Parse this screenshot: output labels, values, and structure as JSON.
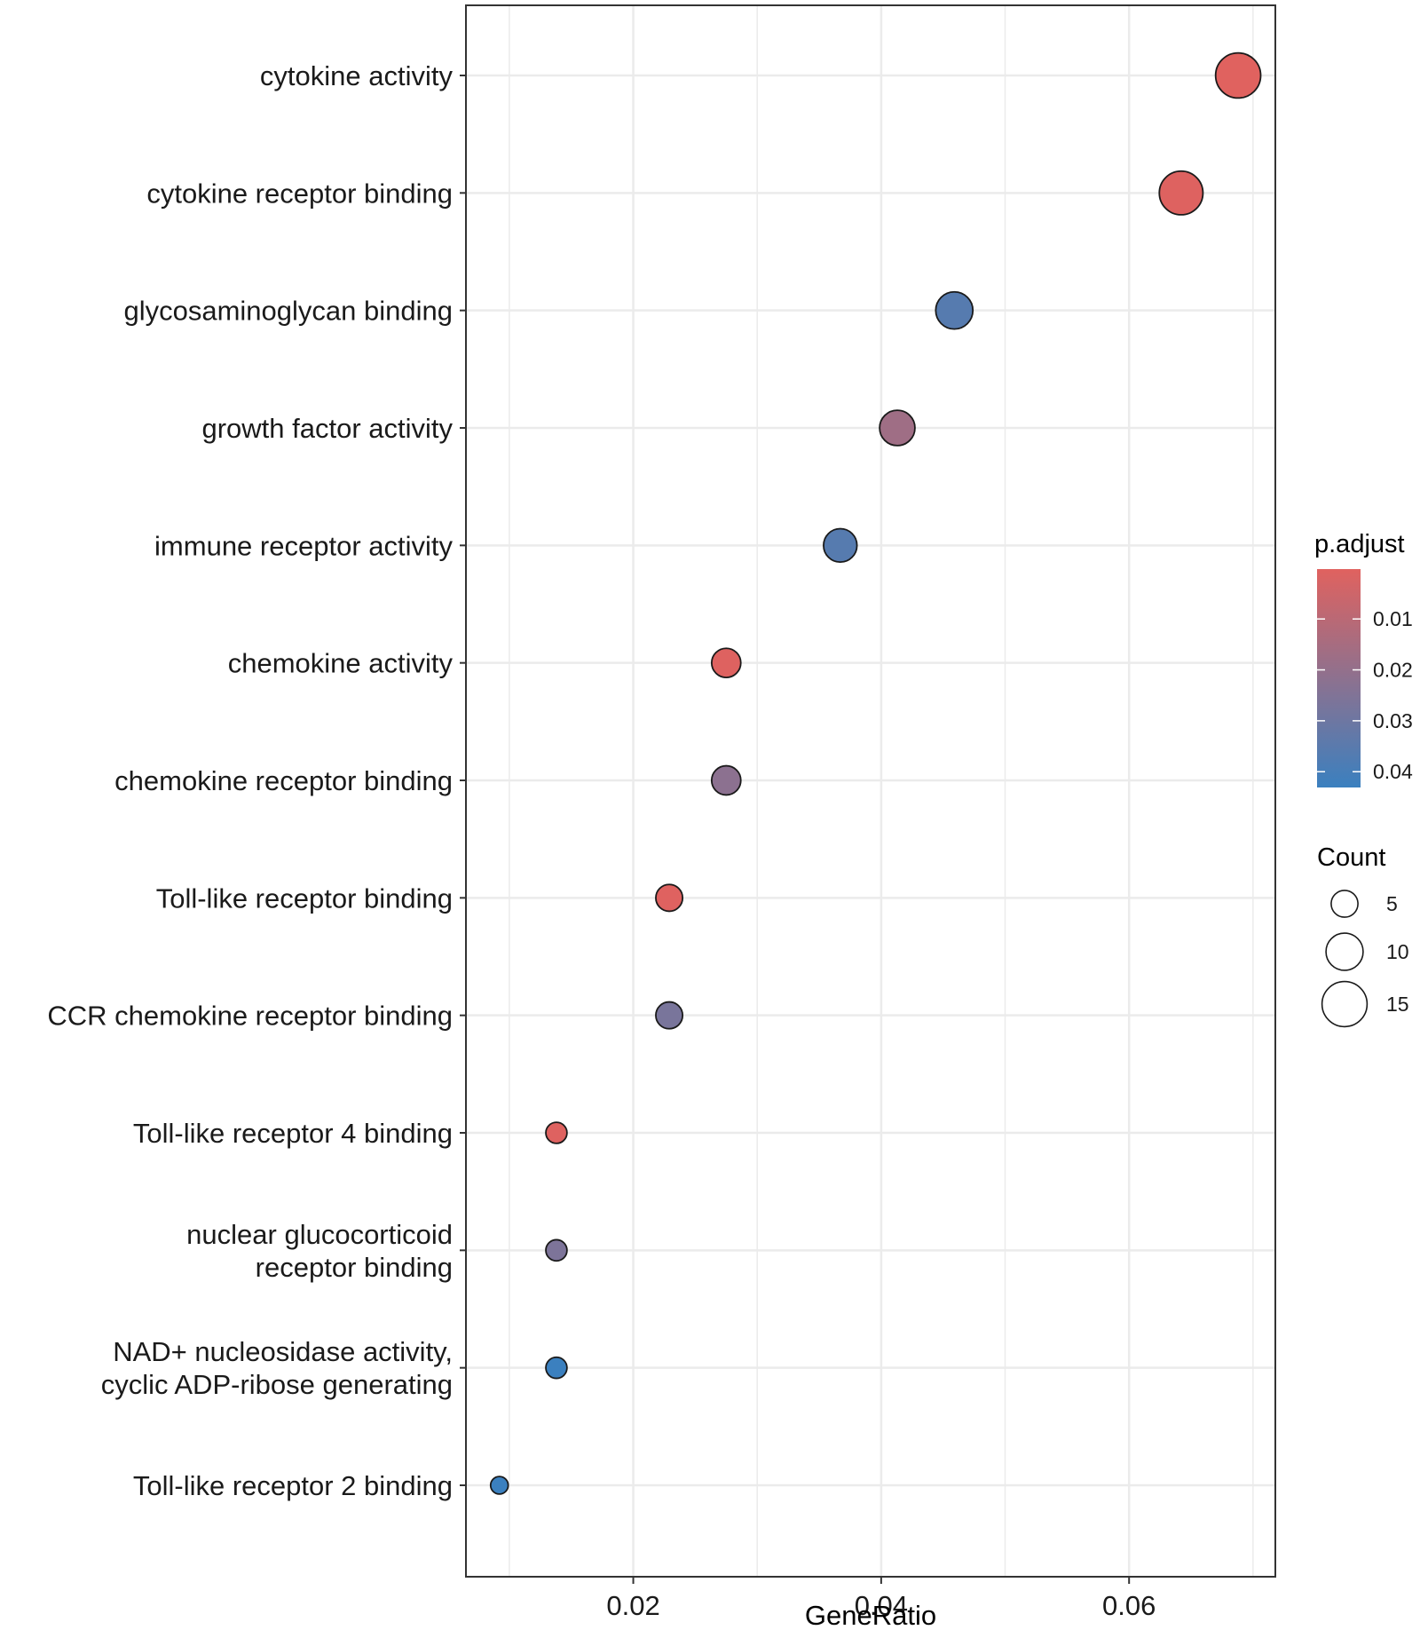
{
  "chart_data": {
    "type": "scatter",
    "subtype": "dotplot",
    "title": "",
    "xlabel": "GeneRatio",
    "ylabel": "",
    "xlim": [
      0.0065,
      0.0718
    ],
    "x_ticks": [
      0.02,
      0.04,
      0.06
    ],
    "x_tick_labels": [
      "0.02",
      "0.04",
      "0.06"
    ],
    "grid": true,
    "categories": [
      [
        "cytokine activity"
      ],
      [
        "cytokine receptor binding"
      ],
      [
        "glycosaminoglycan binding"
      ],
      [
        "growth factor activity"
      ],
      [
        "immune receptor activity"
      ],
      [
        "chemokine activity"
      ],
      [
        "chemokine receptor binding"
      ],
      [
        "Toll-like receptor binding"
      ],
      [
        "CCR chemokine receptor binding"
      ],
      [
        "Toll-like receptor 4 binding"
      ],
      [
        "nuclear glucocorticoid",
        "receptor binding"
      ],
      [
        "NAD+ nucleosidase activity,",
        "cyclic ADP-ribose generating"
      ],
      [
        "Toll-like receptor 2 binding"
      ]
    ],
    "points": [
      {
        "term": "cytokine activity",
        "gene_ratio": 0.0688,
        "count": 15,
        "p_adjust": 0.0003
      },
      {
        "term": "cytokine receptor binding",
        "gene_ratio": 0.0642,
        "count": 14,
        "p_adjust": 0.0008
      },
      {
        "term": "glycosaminoglycan binding",
        "gene_ratio": 0.0459,
        "count": 10,
        "p_adjust": 0.036
      },
      {
        "term": "growth factor activity",
        "gene_ratio": 0.0413,
        "count": 9,
        "p_adjust": 0.017
      },
      {
        "term": "immune receptor activity",
        "gene_ratio": 0.0367,
        "count": 8,
        "p_adjust": 0.036
      },
      {
        "term": "chemokine activity",
        "gene_ratio": 0.0275,
        "count": 6,
        "p_adjust": 0.0008
      },
      {
        "term": "chemokine receptor binding",
        "gene_ratio": 0.0275,
        "count": 6,
        "p_adjust": 0.022
      },
      {
        "term": "Toll-like receptor binding",
        "gene_ratio": 0.0229,
        "count": 5,
        "p_adjust": 0.0005
      },
      {
        "term": "CCR chemokine receptor binding",
        "gene_ratio": 0.0229,
        "count": 5,
        "p_adjust": 0.027
      },
      {
        "term": "Toll-like receptor 4 binding",
        "gene_ratio": 0.0138,
        "count": 3,
        "p_adjust": 0.0008
      },
      {
        "term": "nuclear glucocorticoid receptor binding",
        "gene_ratio": 0.0138,
        "count": 3,
        "p_adjust": 0.026
      },
      {
        "term": "NAD+ nucleosidase activity, cyclic ADP-ribose generating",
        "gene_ratio": 0.0138,
        "count": 3,
        "p_adjust": 0.043
      },
      {
        "term": "Toll-like receptor 2 binding",
        "gene_ratio": 0.0092,
        "count": 2,
        "p_adjust": 0.043
      }
    ],
    "color_legend": {
      "title": "p.adjust",
      "range": [
        0.0002,
        0.0431
      ],
      "ticks": [
        0.01,
        0.02,
        0.03,
        0.04
      ],
      "tick_labels": [
        "0.01",
        "0.02",
        "0.03",
        "0.04"
      ],
      "low_color": "#e0625f",
      "high_color": "#3b80bf"
    },
    "size_legend": {
      "title": "Count",
      "values": [
        5,
        10,
        15
      ],
      "labels": [
        "5",
        "10",
        "15"
      ]
    },
    "legend_position": "right"
  }
}
